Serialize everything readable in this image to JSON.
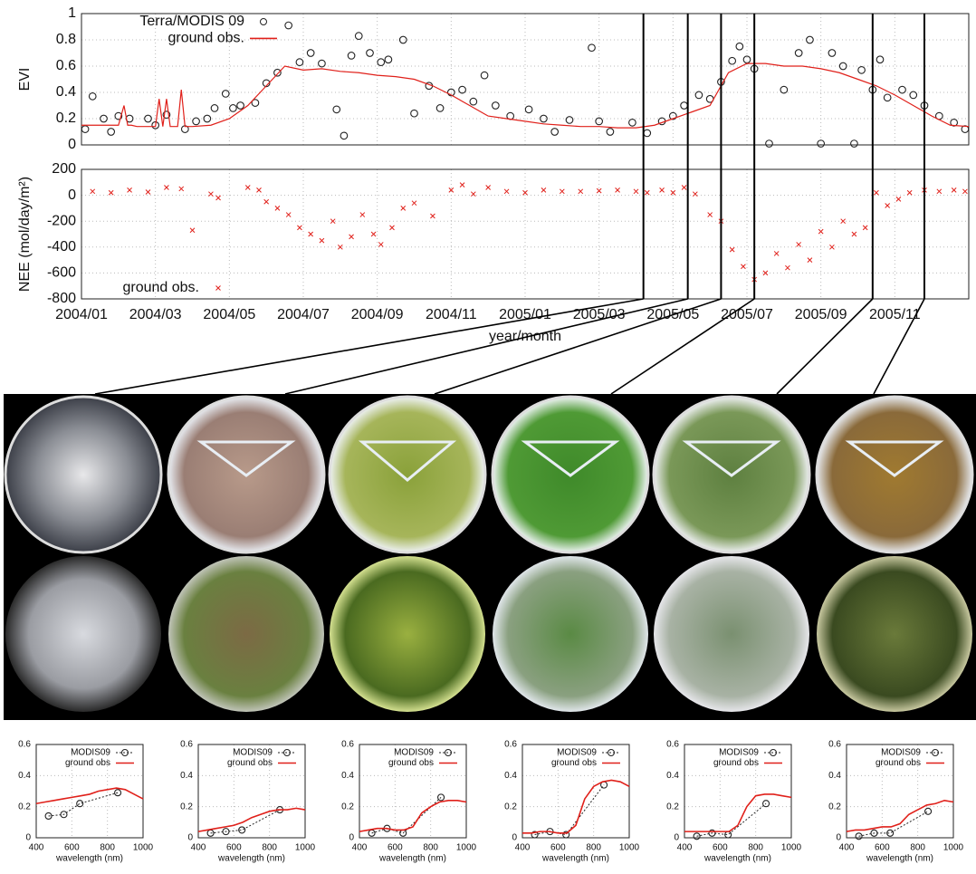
{
  "chart_data": [
    {
      "type": "line",
      "ylabel": "EVI",
      "ylim": [
        0,
        1
      ],
      "yticks": [
        0,
        0.2,
        0.4,
        0.6,
        0.8,
        1
      ],
      "xlim": [
        0,
        24
      ],
      "grid": true,
      "legend": "upper left",
      "markers": [
        15.2,
        16.4,
        17.3,
        18.2,
        21.4,
        22.8
      ],
      "series": [
        {
          "name": "Terra/MODIS 09",
          "kind": "scatter",
          "marker": "circle",
          "color": "#222222",
          "x": [
            0.1,
            0.3,
            0.6,
            0.8,
            1.0,
            1.3,
            1.8,
            2.0,
            2.3,
            2.8,
            3.1,
            3.4,
            3.6,
            3.9,
            4.1,
            4.3,
            4.7,
            5.0,
            5.3,
            5.6,
            5.9,
            6.2,
            6.5,
            6.9,
            7.1,
            7.3,
            7.5,
            7.8,
            8.1,
            8.3,
            8.7,
            9.0,
            9.4,
            9.7,
            10.0,
            10.3,
            10.6,
            10.9,
            11.2,
            11.6,
            12.1,
            12.5,
            12.8,
            13.2,
            13.8,
            14.0,
            14.3,
            14.9,
            15.3,
            15.7,
            16.0,
            16.3,
            16.7,
            17.0,
            17.3,
            17.6,
            17.8,
            18.0,
            18.2,
            18.6,
            19.0,
            19.4,
            19.7,
            20.0,
            20.3,
            20.6,
            20.9,
            21.1,
            21.4,
            21.6,
            21.8,
            22.2,
            22.5,
            22.8,
            23.2,
            23.6,
            23.9
          ],
          "values": [
            0.12,
            0.37,
            0.2,
            0.1,
            0.22,
            0.2,
            0.2,
            0.15,
            0.23,
            0.12,
            0.18,
            0.2,
            0.28,
            0.39,
            0.28,
            0.3,
            0.32,
            0.47,
            0.55,
            0.91,
            0.63,
            0.7,
            0.62,
            0.27,
            0.07,
            0.68,
            0.83,
            0.7,
            0.63,
            0.65,
            0.8,
            0.24,
            0.45,
            0.28,
            0.4,
            0.42,
            0.33,
            0.53,
            0.3,
            0.22,
            0.27,
            0.2,
            0.1,
            0.19,
            0.74,
            0.18,
            0.1,
            0.17,
            0.09,
            0.18,
            0.22,
            0.3,
            0.38,
            0.35,
            0.48,
            0.64,
            0.75,
            0.65,
            0.58,
            0.01,
            0.42,
            0.7,
            0.8,
            0.01,
            0.7,
            0.6,
            0.01,
            0.57,
            0.42,
            0.65,
            0.36,
            0.42,
            0.38,
            0.3,
            0.22,
            0.17,
            0.12
          ]
        },
        {
          "name": "ground obs.",
          "kind": "line",
          "color": "#e0201a",
          "x": [
            0,
            0.5,
            1,
            1.15,
            1.25,
            1.35,
            1.5,
            2,
            2.1,
            2.2,
            2.3,
            2.4,
            2.5,
            2.6,
            2.7,
            2.8,
            3,
            3.5,
            4,
            4.5,
            5,
            5.5,
            6,
            6.5,
            7,
            7.5,
            8,
            8.5,
            9,
            9.5,
            10,
            10.5,
            11,
            11.5,
            12,
            12.5,
            13,
            13.5,
            14,
            14.5,
            15,
            15.5,
            16,
            16.5,
            17,
            17.5,
            18,
            18.5,
            19,
            19.5,
            20,
            20.5,
            21,
            21.5,
            22,
            22.5,
            23,
            23.5,
            24
          ],
          "values": [
            0.15,
            0.15,
            0.15,
            0.3,
            0.15,
            0.15,
            0.14,
            0.14,
            0.35,
            0.14,
            0.35,
            0.14,
            0.14,
            0.14,
            0.42,
            0.14,
            0.14,
            0.15,
            0.2,
            0.3,
            0.45,
            0.6,
            0.57,
            0.58,
            0.56,
            0.55,
            0.53,
            0.52,
            0.5,
            0.45,
            0.38,
            0.3,
            0.22,
            0.2,
            0.18,
            0.16,
            0.15,
            0.14,
            0.14,
            0.13,
            0.13,
            0.15,
            0.2,
            0.25,
            0.3,
            0.55,
            0.62,
            0.62,
            0.6,
            0.6,
            0.58,
            0.55,
            0.5,
            0.45,
            0.38,
            0.3,
            0.22,
            0.15,
            0.14
          ]
        }
      ]
    },
    {
      "type": "scatter",
      "ylabel": "NEE (mol/day/m²)",
      "xlabel": "year/month",
      "ylim": [
        -800,
        200
      ],
      "yticks": [
        -800,
        -600,
        -400,
        -200,
        0,
        200
      ],
      "xlim": [
        0,
        24
      ],
      "xticks": [
        {
          "value": 0,
          "label": "2004/01"
        },
        {
          "value": 2,
          "label": "2004/03"
        },
        {
          "value": 4,
          "label": "2004/05"
        },
        {
          "value": 6,
          "label": "2004/07"
        },
        {
          "value": 8,
          "label": "2004/09"
        },
        {
          "value": 10,
          "label": "2004/11"
        },
        {
          "value": 12,
          "label": "2005/01"
        },
        {
          "value": 14,
          "label": "2005/03"
        },
        {
          "value": 16,
          "label": "2005/05"
        },
        {
          "value": 18,
          "label": "2005/07"
        },
        {
          "value": 20,
          "label": "2005/09"
        },
        {
          "value": 22,
          "label": "2005/11"
        }
      ],
      "grid": true,
      "legend": "lower left",
      "series": [
        {
          "name": "ground obs.",
          "kind": "scatter",
          "marker": "x",
          "color": "#e0201a",
          "x": [
            0.3,
            0.8,
            1.3,
            1.8,
            2.3,
            2.7,
            3.0,
            3.5,
            3.7,
            4.5,
            4.8,
            5.0,
            5.3,
            5.6,
            5.9,
            6.2,
            6.5,
            6.8,
            7.0,
            7.3,
            7.6,
            7.9,
            8.1,
            8.4,
            8.7,
            9.0,
            9.5,
            10.0,
            10.3,
            10.6,
            11.0,
            11.5,
            12,
            12.5,
            13,
            13.5,
            14,
            14.5,
            15,
            15.3,
            15.7,
            16,
            16.3,
            16.6,
            17,
            17.3,
            17.6,
            17.9,
            18.2,
            18.5,
            18.8,
            19.1,
            19.4,
            19.7,
            20,
            20.3,
            20.6,
            20.9,
            21.2,
            21.5,
            21.8,
            22.1,
            22.4,
            22.8,
            23.2,
            23.6,
            23.9
          ],
          "values": [
            30,
            20,
            40,
            25,
            60,
            50,
            -270,
            10,
            -20,
            60,
            40,
            -50,
            -100,
            -150,
            -250,
            -300,
            -350,
            -200,
            -400,
            -320,
            -150,
            -300,
            -380,
            -250,
            -100,
            -60,
            -160,
            40,
            80,
            10,
            60,
            30,
            20,
            40,
            30,
            30,
            35,
            40,
            30,
            20,
            40,
            20,
            60,
            10,
            -150,
            -200,
            -420,
            -550,
            -650,
            -600,
            -450,
            -560,
            -380,
            -500,
            -280,
            -400,
            -200,
            -300,
            -250,
            20,
            -80,
            -30,
            20,
            40,
            30,
            40,
            30
          ]
        }
      ]
    },
    {
      "type": "line",
      "xlabel": "wavelength (nm)",
      "xlim": [
        400,
        1000
      ],
      "xticks": [
        400,
        600,
        800,
        1000
      ],
      "ylim": [
        0,
        0.6
      ],
      "yticks": [
        0,
        0.2,
        0.4,
        0.6
      ],
      "grid": true,
      "legend": "upper left",
      "series": [
        {
          "name": "MODIS09",
          "kind": "line",
          "dashed": true,
          "marker": "circle",
          "color": "#222222",
          "x": [
            469,
            555,
            645,
            858
          ],
          "values": [
            0.14,
            0.15,
            0.22,
            0.29
          ]
        },
        {
          "name": "ground obs",
          "kind": "line",
          "color": "#e0201a",
          "x": [
            400,
            450,
            500,
            550,
            600,
            650,
            700,
            750,
            800,
            850,
            900,
            950,
            1000
          ],
          "values": [
            0.22,
            0.23,
            0.24,
            0.25,
            0.26,
            0.27,
            0.28,
            0.3,
            0.31,
            0.32,
            0.31,
            0.28,
            0.25
          ]
        }
      ]
    },
    {
      "type": "line",
      "xlabel": "wavelength (nm)",
      "xlim": [
        400,
        1000
      ],
      "xticks": [
        400,
        600,
        800,
        1000
      ],
      "ylim": [
        0,
        0.6
      ],
      "yticks": [
        0,
        0.2,
        0.4,
        0.6
      ],
      "grid": true,
      "legend": "upper left",
      "series": [
        {
          "name": "MODIS09",
          "kind": "line",
          "dashed": true,
          "marker": "circle",
          "color": "#222222",
          "x": [
            469,
            555,
            645,
            858
          ],
          "values": [
            0.03,
            0.04,
            0.05,
            0.18
          ]
        },
        {
          "name": "ground obs",
          "kind": "line",
          "color": "#e0201a",
          "x": [
            400,
            450,
            500,
            550,
            600,
            650,
            700,
            750,
            800,
            850,
            900,
            950,
            1000
          ],
          "values": [
            0.04,
            0.05,
            0.06,
            0.07,
            0.08,
            0.1,
            0.13,
            0.15,
            0.17,
            0.18,
            0.18,
            0.19,
            0.18
          ]
        }
      ]
    },
    {
      "type": "line",
      "xlabel": "wavelength (nm)",
      "xlim": [
        400,
        1000
      ],
      "xticks": [
        400,
        600,
        800,
        1000
      ],
      "ylim": [
        0,
        0.6
      ],
      "yticks": [
        0,
        0.2,
        0.4,
        0.6
      ],
      "grid": true,
      "legend": "upper left",
      "series": [
        {
          "name": "MODIS09",
          "kind": "line",
          "dashed": true,
          "marker": "circle",
          "color": "#222222",
          "x": [
            469,
            555,
            645,
            858
          ],
          "values": [
            0.03,
            0.06,
            0.03,
            0.26
          ]
        },
        {
          "name": "ground obs",
          "kind": "line",
          "color": "#e0201a",
          "x": [
            400,
            450,
            500,
            550,
            600,
            650,
            700,
            750,
            800,
            850,
            900,
            950,
            1000
          ],
          "values": [
            0.04,
            0.05,
            0.06,
            0.06,
            0.05,
            0.05,
            0.07,
            0.16,
            0.2,
            0.23,
            0.24,
            0.24,
            0.23
          ]
        }
      ]
    },
    {
      "type": "line",
      "xlabel": "wavelength (nm)",
      "xlim": [
        400,
        1000
      ],
      "xticks": [
        400,
        600,
        800,
        1000
      ],
      "ylim": [
        0,
        0.6
      ],
      "yticks": [
        0,
        0.2,
        0.4,
        0.6
      ],
      "grid": true,
      "legend": "upper left",
      "series": [
        {
          "name": "MODIS09",
          "kind": "line",
          "dashed": true,
          "marker": "circle",
          "color": "#222222",
          "x": [
            469,
            555,
            645,
            858
          ],
          "values": [
            0.02,
            0.04,
            0.02,
            0.34
          ]
        },
        {
          "name": "ground obs",
          "kind": "line",
          "color": "#e0201a",
          "x": [
            400,
            450,
            500,
            550,
            600,
            650,
            700,
            750,
            800,
            850,
            900,
            950,
            1000
          ],
          "values": [
            0.03,
            0.03,
            0.04,
            0.04,
            0.03,
            0.03,
            0.08,
            0.25,
            0.33,
            0.36,
            0.37,
            0.36,
            0.33
          ]
        }
      ]
    },
    {
      "type": "line",
      "xlabel": "wavelength (nm)",
      "xlim": [
        400,
        1000
      ],
      "xticks": [
        400,
        600,
        800,
        1000
      ],
      "ylim": [
        0,
        0.6
      ],
      "yticks": [
        0,
        0.2,
        0.4,
        0.6
      ],
      "grid": true,
      "legend": "upper left",
      "series": [
        {
          "name": "MODIS09",
          "kind": "line",
          "dashed": true,
          "marker": "circle",
          "color": "#222222",
          "x": [
            469,
            555,
            645,
            858
          ],
          "values": [
            0.01,
            0.03,
            0.02,
            0.22
          ]
        },
        {
          "name": "ground obs",
          "kind": "line",
          "color": "#e0201a",
          "x": [
            400,
            450,
            500,
            550,
            600,
            650,
            700,
            750,
            800,
            850,
            900,
            950,
            1000
          ],
          "values": [
            0.04,
            0.04,
            0.04,
            0.04,
            0.04,
            0.04,
            0.08,
            0.2,
            0.27,
            0.28,
            0.28,
            0.27,
            0.26
          ]
        }
      ]
    },
    {
      "type": "line",
      "xlabel": "wavelength (nm)",
      "xlim": [
        400,
        1000
      ],
      "xticks": [
        400,
        600,
        800,
        1000
      ],
      "ylim": [
        0,
        0.6
      ],
      "yticks": [
        0,
        0.2,
        0.4,
        0.6
      ],
      "grid": true,
      "legend": "upper left",
      "series": [
        {
          "name": "MODIS09",
          "kind": "line",
          "dashed": true,
          "marker": "circle",
          "color": "#222222",
          "x": [
            469,
            555,
            645,
            858
          ],
          "values": [
            0.01,
            0.03,
            0.03,
            0.17
          ]
        },
        {
          "name": "ground obs",
          "kind": "line",
          "color": "#e0201a",
          "x": [
            400,
            450,
            500,
            550,
            600,
            650,
            700,
            750,
            800,
            850,
            900,
            950,
            1000
          ],
          "values": [
            0.04,
            0.05,
            0.05,
            0.06,
            0.07,
            0.07,
            0.09,
            0.15,
            0.18,
            0.21,
            0.22,
            0.24,
            0.23
          ]
        }
      ]
    }
  ]
}
